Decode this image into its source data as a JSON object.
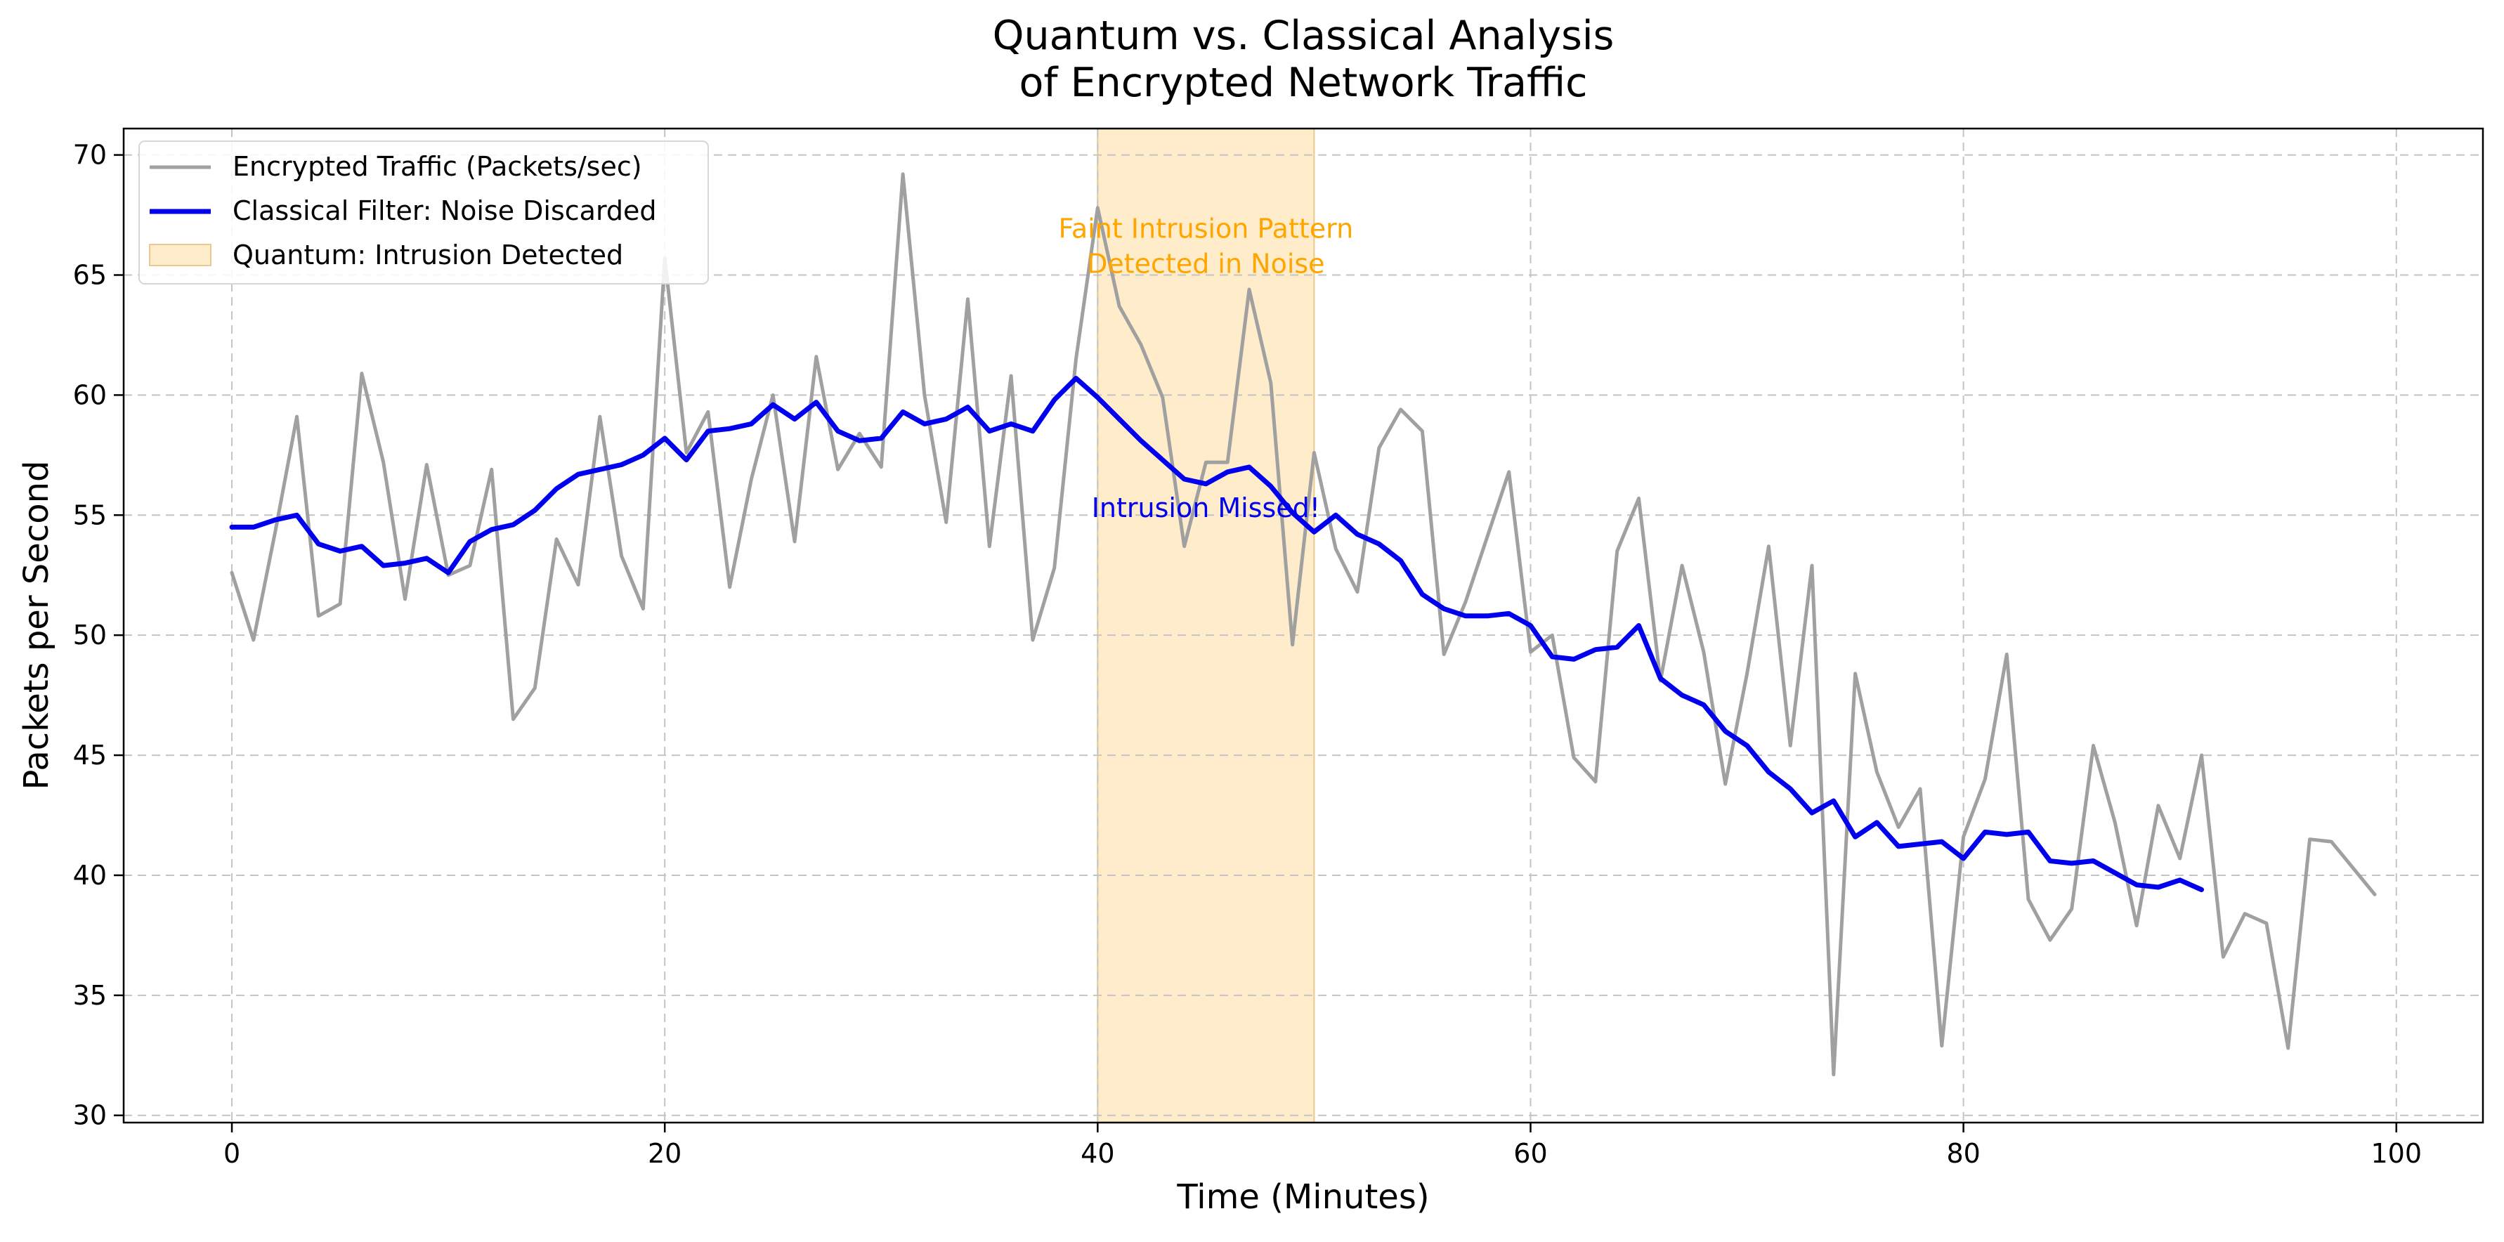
{
  "chart_data": {
    "type": "line",
    "title": [
      "Quantum vs. Classical Analysis",
      "of Encrypted Network Traffic"
    ],
    "xlabel": "Time (Minutes)",
    "ylabel": "Packets per Second",
    "xlim": [
      -5,
      104
    ],
    "ylim": [
      29.7,
      71.1
    ],
    "x_ticks": [
      0,
      20,
      40,
      60,
      80,
      100
    ],
    "y_ticks": [
      30,
      35,
      40,
      45,
      50,
      55,
      60,
      65,
      70
    ],
    "grid": true,
    "grid_style": "dashed",
    "legend_position": "top-left",
    "colors": {
      "raw": "#a0a0a0",
      "filtered": "#0000ee",
      "band": "#ffeccb",
      "band_edge": "#e8c98f",
      "annotation_quantum": "#ffa500",
      "annotation_classical": "#0000ee",
      "grid": "#c4c4c4"
    },
    "series": [
      {
        "name": "Encrypted Traffic (Packets/sec)",
        "x_start": 0,
        "x_step": 1,
        "values": [
          52.6,
          49.8,
          54.3,
          59.1,
          50.8,
          51.3,
          60.9,
          57.2,
          51.5,
          57.1,
          52.5,
          52.9,
          56.9,
          46.5,
          47.8,
          54.0,
          52.1,
          59.1,
          53.3,
          51.1,
          65.7,
          57.6,
          59.3,
          52.0,
          56.5,
          60.0,
          53.9,
          61.6,
          56.9,
          58.4,
          57.0,
          69.2,
          60.0,
          54.7,
          64.0,
          53.7,
          60.8,
          49.8,
          52.8,
          61.5,
          67.8,
          63.7,
          62.1,
          59.9,
          53.7,
          57.2,
          57.2,
          64.4,
          60.5,
          49.6,
          57.6,
          53.6,
          51.8,
          57.8,
          59.4,
          58.5,
          49.2,
          51.4,
          54.1,
          56.8,
          49.3,
          50.0,
          44.9,
          43.9,
          53.5,
          55.7,
          48.1,
          52.9,
          49.3,
          43.8,
          48.4,
          53.7,
          45.4,
          52.9,
          31.7,
          48.4,
          44.3,
          42.0,
          43.6,
          32.9,
          41.6,
          44.0,
          49.2,
          39.0,
          37.3,
          38.6,
          45.4,
          42.2,
          37.9,
          42.9,
          40.7,
          45.0,
          36.6,
          38.4,
          38.0,
          32.8,
          41.5,
          41.4,
          40.3,
          39.2
        ]
      },
      {
        "name": "Classical Filter: Noise Discarded",
        "x_start": 0,
        "x_step": 1,
        "values": [
          54.5,
          54.5,
          54.8,
          55.0,
          53.8,
          53.5,
          53.7,
          52.9,
          53.0,
          53.2,
          52.6,
          53.9,
          54.4,
          54.6,
          55.2,
          56.1,
          56.7,
          56.9,
          57.1,
          57.5,
          58.2,
          57.3,
          58.5,
          58.6,
          58.8,
          59.6,
          59.0,
          59.7,
          58.5,
          58.1,
          58.2,
          59.3,
          58.8,
          59.0,
          59.5,
          58.5,
          58.8,
          58.5,
          59.8,
          60.7,
          59.9,
          59.0,
          58.1,
          57.3,
          56.5,
          56.3,
          56.8,
          57.0,
          56.2,
          55.1,
          54.3,
          55.0,
          54.2,
          53.8,
          53.1,
          51.7,
          51.1,
          50.8,
          50.8,
          50.9,
          50.4,
          49.1,
          49.0,
          49.4,
          49.5,
          50.4,
          48.2,
          47.5,
          47.1,
          46.0,
          45.4,
          44.3,
          43.6,
          42.6,
          43.1,
          41.6,
          42.2,
          41.2,
          41.3,
          41.4,
          40.7,
          41.8,
          41.7,
          41.8,
          40.6,
          40.5,
          40.6,
          40.1,
          39.6,
          39.5,
          39.8,
          39.4
        ]
      }
    ],
    "band": {
      "name": "Quantum: Intrusion Detected",
      "x_from": 40,
      "x_to": 50
    },
    "annotations": [
      {
        "lines": [
          "Faint Intrusion Pattern",
          "Detected in Noise"
        ],
        "x": 45,
        "y": 66.2,
        "color_key": "annotation_quantum"
      },
      {
        "lines": [
          "Intrusion Missed!"
        ],
        "x": 45,
        "y": 55.3,
        "color_key": "annotation_classical"
      }
    ]
  }
}
